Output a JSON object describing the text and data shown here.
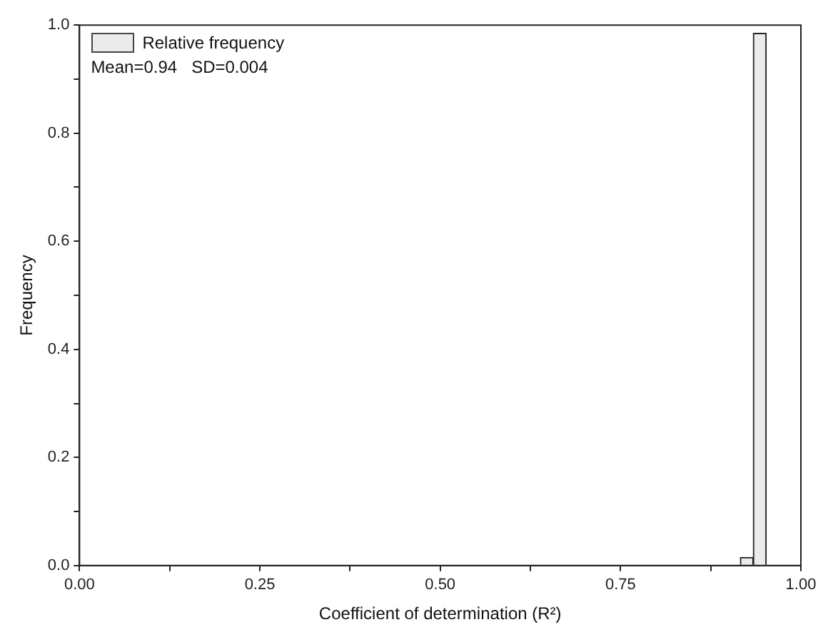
{
  "chart_data": {
    "type": "histogram",
    "xlabel": "Coefficient of determination (R²)",
    "ylabel": "Frequency",
    "bins": [
      0.916,
      0.934,
      0.952
    ],
    "series": [
      {
        "name": "Relative frequency",
        "color": "#ebebeb",
        "values": [
          0.015,
          0.985
        ]
      }
    ],
    "xlim": [
      0,
      1
    ],
    "ylim": [
      0,
      1
    ],
    "xticks": [
      {
        "value": 0,
        "label": "0.00"
      },
      {
        "value": 0.125,
        "label": null
      },
      {
        "value": 0.25,
        "label": "0.25"
      },
      {
        "value": 0.375,
        "label": null
      },
      {
        "value": 0.5,
        "label": "0.50"
      },
      {
        "value": 0.625,
        "label": null
      },
      {
        "value": 0.75,
        "label": "0.75"
      },
      {
        "value": 0.875,
        "label": null
      },
      {
        "value": 1,
        "label": "1.00"
      }
    ],
    "yticks": [
      {
        "value": 0,
        "label": "0.0"
      },
      {
        "value": 0.1,
        "label": null
      },
      {
        "value": 0.2,
        "label": "0.2"
      },
      {
        "value": 0.3,
        "label": null
      },
      {
        "value": 0.4,
        "label": "0.4"
      },
      {
        "value": 0.5,
        "label": null
      },
      {
        "value": 0.6,
        "label": "0.6"
      },
      {
        "value": 0.7,
        "label": null
      },
      {
        "value": 0.8,
        "label": "0.8"
      },
      {
        "value": 0.9,
        "label": null
      },
      {
        "value": 1,
        "label": "1.0"
      }
    ],
    "annotations": [
      "Mean=0.94   SD=0.004"
    ],
    "legend": "top left",
    "grid": false
  }
}
